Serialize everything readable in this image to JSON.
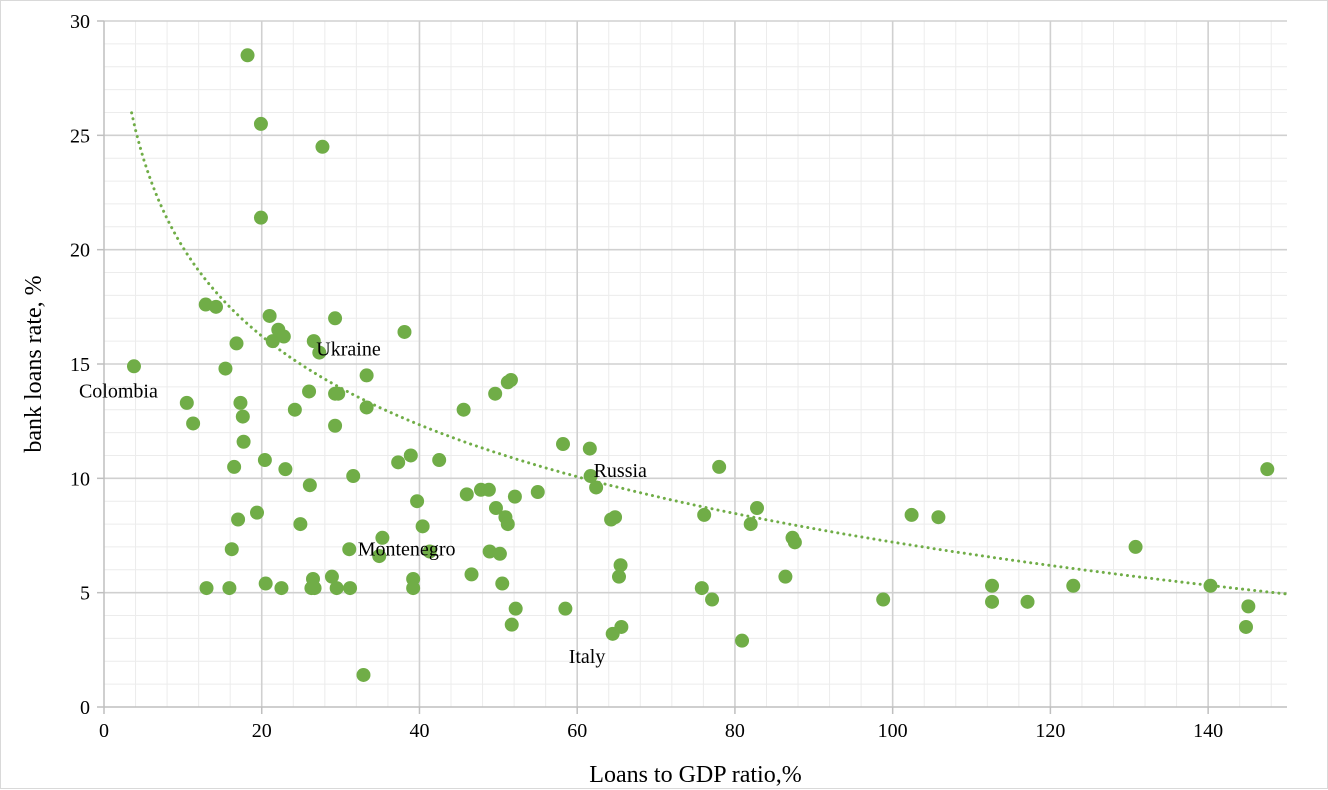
{
  "chart_data": {
    "type": "scatter",
    "title": "",
    "xlabel": "Loans to GDP ratio,%",
    "ylabel": "bank loans rate, %",
    "xlim": [
      0,
      150
    ],
    "ylim": [
      0,
      30
    ],
    "x_ticks": [
      0,
      20,
      40,
      60,
      80,
      100,
      120,
      140
    ],
    "y_ticks": [
      0,
      5,
      10,
      15,
      20,
      25,
      30
    ],
    "grid": {
      "major": true,
      "minor": true
    },
    "legend": "none",
    "marker_color": "#70ad47",
    "trendline": {
      "type": "logarithmic",
      "style": "dotted",
      "color": "#70ad47",
      "x_range": [
        3.5,
        150
      ],
      "a": 33.0,
      "b": 5.6
    },
    "points": [
      [
        3.8,
        14.9
      ],
      [
        10.5,
        13.3
      ],
      [
        11.3,
        12.4
      ],
      [
        12.9,
        17.6
      ],
      [
        13.0,
        5.2
      ],
      [
        14.2,
        17.5
      ],
      [
        15.4,
        14.8
      ],
      [
        15.9,
        5.2
      ],
      [
        16.2,
        6.9
      ],
      [
        16.5,
        10.5
      ],
      [
        16.8,
        15.9
      ],
      [
        17.0,
        8.2
      ],
      [
        17.3,
        13.3
      ],
      [
        17.6,
        12.7
      ],
      [
        17.7,
        11.6
      ],
      [
        18.2,
        28.5
      ],
      [
        19.4,
        8.5
      ],
      [
        19.9,
        25.5
      ],
      [
        19.9,
        21.4
      ],
      [
        20.4,
        10.8
      ],
      [
        20.5,
        5.4
      ],
      [
        21.0,
        17.1
      ],
      [
        21.4,
        16.0
      ],
      [
        22.1,
        16.5
      ],
      [
        22.5,
        5.2
      ],
      [
        22.8,
        16.2
      ],
      [
        23.0,
        10.4
      ],
      [
        24.2,
        13.0
      ],
      [
        24.9,
        8.0
      ],
      [
        26.0,
        13.8
      ],
      [
        26.1,
        9.7
      ],
      [
        26.3,
        5.2
      ],
      [
        26.5,
        5.6
      ],
      [
        26.6,
        16.0
      ],
      [
        26.7,
        5.2
      ],
      [
        27.3,
        15.5
      ],
      [
        27.7,
        24.5
      ],
      [
        28.9,
        5.7
      ],
      [
        29.3,
        17.0
      ],
      [
        29.3,
        12.3
      ],
      [
        29.3,
        13.7
      ],
      [
        29.5,
        5.2
      ],
      [
        29.7,
        13.7
      ],
      [
        31.1,
        6.9
      ],
      [
        31.2,
        5.2
      ],
      [
        31.6,
        10.1
      ],
      [
        32.9,
        1.4
      ],
      [
        33.3,
        14.5
      ],
      [
        33.3,
        13.1
      ],
      [
        34.9,
        6.6
      ],
      [
        35.3,
        7.4
      ],
      [
        37.3,
        10.7
      ],
      [
        38.1,
        16.4
      ],
      [
        38.9,
        11.0
      ],
      [
        39.2,
        5.6
      ],
      [
        39.2,
        5.2
      ],
      [
        39.7,
        9.0
      ],
      [
        40.4,
        7.9
      ],
      [
        41.3,
        6.8
      ],
      [
        42.5,
        10.8
      ],
      [
        45.6,
        13.0
      ],
      [
        46.0,
        9.3
      ],
      [
        46.6,
        5.8
      ],
      [
        47.8,
        9.5
      ],
      [
        48.8,
        9.5
      ],
      [
        48.9,
        6.8
      ],
      [
        49.6,
        13.7
      ],
      [
        49.7,
        8.7
      ],
      [
        50.2,
        6.7
      ],
      [
        50.5,
        5.4
      ],
      [
        50.9,
        8.3
      ],
      [
        51.2,
        8.0
      ],
      [
        51.2,
        14.2
      ],
      [
        51.6,
        14.3
      ],
      [
        51.7,
        3.6
      ],
      [
        52.1,
        9.2
      ],
      [
        52.2,
        4.3
      ],
      [
        55.0,
        9.4
      ],
      [
        58.2,
        11.5
      ],
      [
        58.5,
        4.3
      ],
      [
        61.6,
        11.3
      ],
      [
        61.7,
        10.1
      ],
      [
        62.4,
        9.6
      ],
      [
        64.3,
        8.2
      ],
      [
        64.5,
        3.2
      ],
      [
        64.8,
        8.3
      ],
      [
        65.3,
        5.7
      ],
      [
        65.5,
        6.2
      ],
      [
        65.6,
        3.5
      ],
      [
        75.8,
        5.2
      ],
      [
        76.1,
        8.4
      ],
      [
        77.1,
        4.7
      ],
      [
        78.0,
        10.5
      ],
      [
        80.9,
        2.9
      ],
      [
        82.0,
        8.0
      ],
      [
        82.8,
        8.7
      ],
      [
        86.4,
        5.7
      ],
      [
        87.3,
        7.4
      ],
      [
        87.6,
        7.2
      ],
      [
        98.8,
        4.7
      ],
      [
        102.4,
        8.4
      ],
      [
        105.8,
        8.3
      ],
      [
        112.6,
        5.3
      ],
      [
        112.6,
        4.6
      ],
      [
        117.1,
        4.6
      ],
      [
        122.9,
        5.3
      ],
      [
        130.8,
        7.0
      ],
      [
        140.3,
        5.3
      ],
      [
        144.8,
        3.5
      ],
      [
        145.1,
        4.4
      ],
      [
        147.5,
        10.4
      ]
    ],
    "annotations": [
      {
        "text": "Colombia",
        "x": 3.8,
        "y": 14.9
      },
      {
        "text": "Ukraine",
        "x": 27.3,
        "y": 15.5
      },
      {
        "text": "Russia",
        "x": 61.7,
        "y": 10.1
      },
      {
        "text": "Montenegro",
        "x": 41.3,
        "y": 6.8
      },
      {
        "text": "Italy",
        "x": 64.5,
        "y": 3.2
      }
    ]
  }
}
